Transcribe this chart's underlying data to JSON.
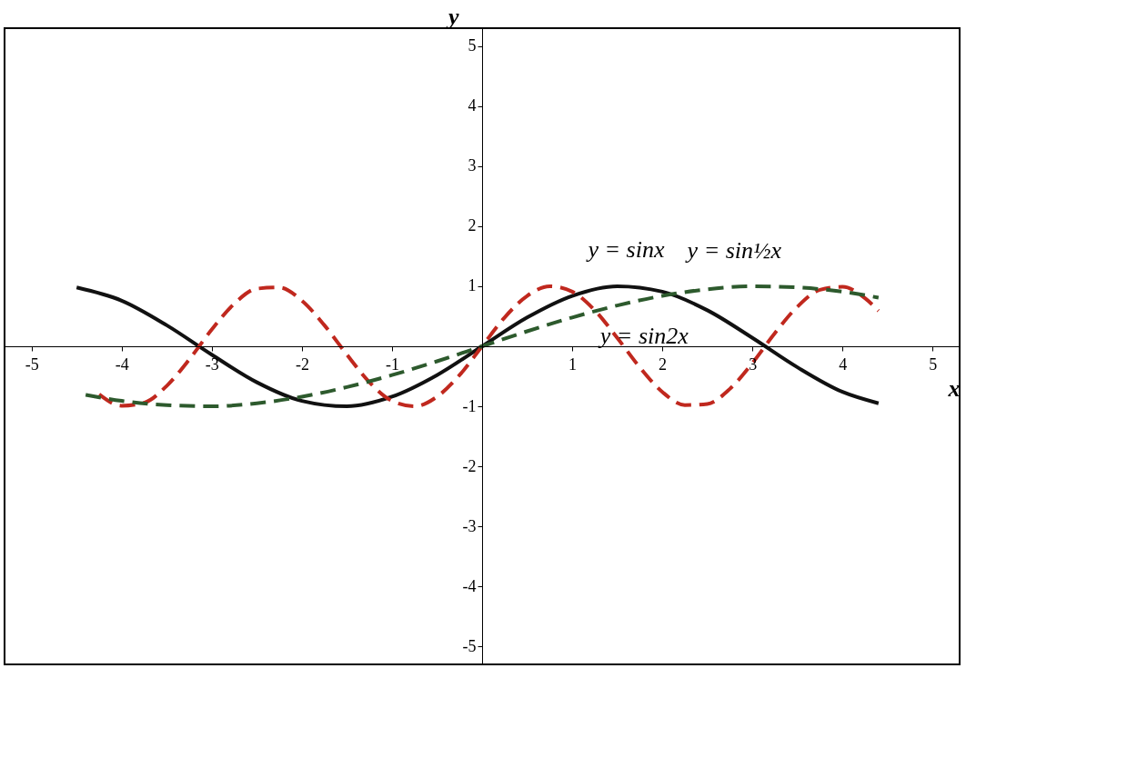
{
  "chart_data": {
    "type": "line",
    "xlabel": "x",
    "ylabel": "y",
    "xlim": [
      -5.3,
      5.3
    ],
    "ylim": [
      -5.3,
      5.3
    ],
    "xticks": [
      -5,
      -4,
      -3,
      -2,
      -1,
      {
        "value": 0,
        "label": null
      },
      1,
      2,
      3,
      4,
      5
    ],
    "yticks": [
      -5,
      -4,
      -3,
      -2,
      -1,
      {
        "value": 0,
        "label": null
      },
      1,
      2,
      3,
      4,
      5
    ],
    "grid": false,
    "marker": "none",
    "series": [
      {
        "color": "#111111",
        "line_style": "solid",
        "x": [
          -4.5,
          -4,
          -3.5,
          -3,
          -2.5,
          -2,
          -1.5,
          -1,
          -0.5,
          0,
          0.5,
          1,
          1.5,
          2,
          2.5,
          3,
          3.5,
          4,
          4.4
        ],
        "values": [
          0.98,
          0.76,
          0.35,
          -0.14,
          -0.6,
          -0.91,
          -1.0,
          -0.84,
          -0.48,
          0,
          0.48,
          0.84,
          1.0,
          0.91,
          0.6,
          0.14,
          -0.35,
          -0.76,
          -0.95
        ]
      },
      {
        "color": "#c0281e",
        "line_style": "dashed",
        "x": [
          -4.25,
          -4,
          -3.75,
          -3.5,
          -3.25,
          -3,
          -2.75,
          -2.5,
          -2.25,
          -2,
          -1.75,
          -1.5,
          -1.25,
          -1,
          -0.75,
          -0.5,
          -0.25,
          0,
          0.25,
          0.5,
          0.75,
          1,
          1.25,
          1.5,
          1.75,
          2,
          2.25,
          2.5,
          2.75,
          3,
          3.25,
          3.5,
          3.75,
          4,
          4.25,
          4.4
        ],
        "values": [
          -0.8,
          -0.99,
          -0.94,
          -0.66,
          -0.22,
          0.28,
          0.71,
          0.96,
          0.98,
          0.76,
          0.35,
          -0.14,
          -0.6,
          -0.91,
          -1.0,
          -0.84,
          -0.48,
          0,
          0.48,
          0.84,
          1.0,
          0.91,
          0.6,
          0.14,
          -0.35,
          -0.76,
          -0.98,
          -0.96,
          -0.71,
          -0.28,
          0.22,
          0.66,
          0.94,
          0.99,
          0.8,
          0.59
        ]
      },
      {
        "color": "#2d5a2d",
        "line_style": "dashed",
        "x": [
          -4.4,
          -4,
          -3.5,
          -3,
          -2.5,
          -2,
          -1.5,
          -1,
          -0.5,
          0,
          0.5,
          1,
          1.5,
          2,
          2.5,
          3,
          3.5,
          4,
          4.4
        ],
        "values": [
          -0.81,
          -0.91,
          -0.98,
          -1.0,
          -0.95,
          -0.84,
          -0.68,
          -0.48,
          -0.25,
          0,
          0.25,
          0.48,
          0.68,
          0.84,
          0.95,
          1.0,
          0.98,
          0.91,
          0.81
        ]
      }
    ],
    "annotations": [
      {
        "text": "y = sinx",
        "x": 1.6,
        "y": 1.0
      },
      {
        "text": "y = sin½x",
        "x": 2.8,
        "y": 0.99
      },
      {
        "text": "y = sin2x",
        "x": 1.8,
        "y": -0.44
      }
    ]
  }
}
